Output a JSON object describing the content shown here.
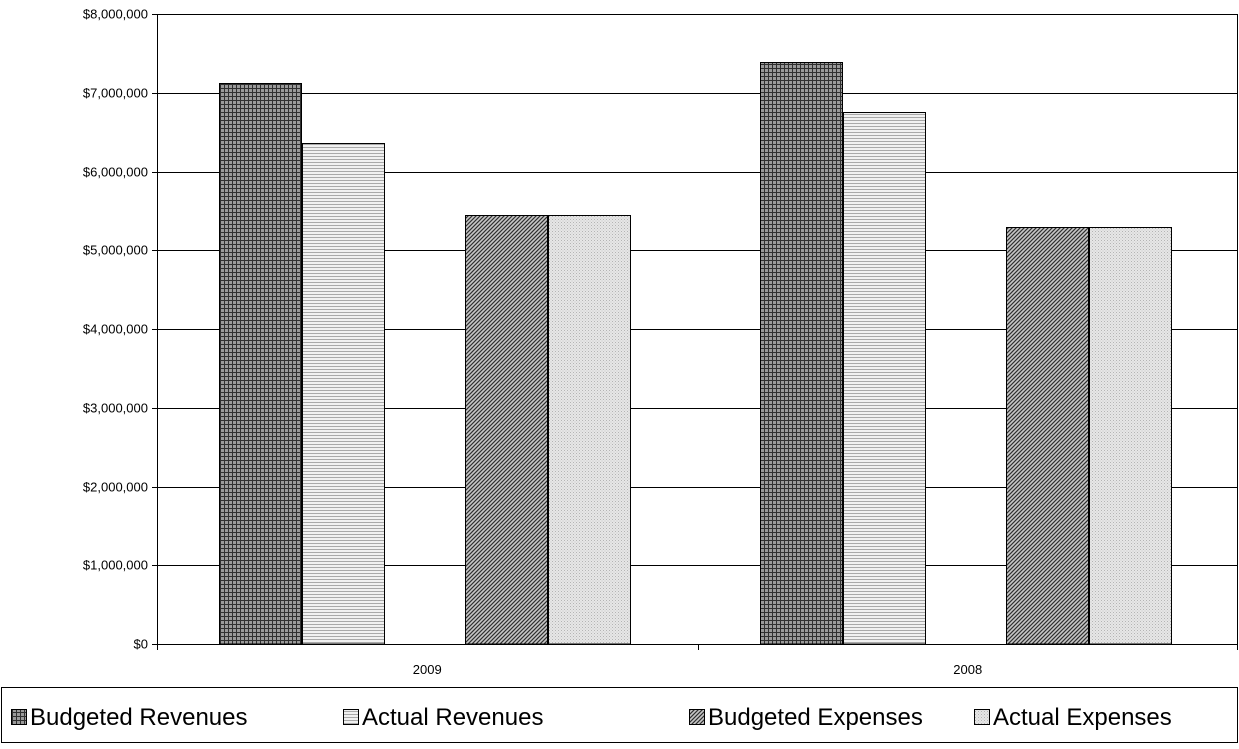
{
  "chart_data": {
    "type": "bar",
    "categories": [
      "2009",
      "2008"
    ],
    "series": [
      {
        "name": "Budgeted Revenues",
        "values": [
          7120000,
          7390000
        ],
        "pattern": "grid-dark",
        "fill": "#808080"
      },
      {
        "name": "Actual Revenues",
        "values": [
          6360000,
          6760000
        ],
        "pattern": "lines-light",
        "fill": "#d0d0d0"
      },
      {
        "name": "Budgeted Expenses",
        "values": [
          5450000,
          5290000
        ],
        "pattern": "diagonal-dark",
        "fill": "#707070"
      },
      {
        "name": "Actual Expenses",
        "values": [
          5450000,
          5290000
        ],
        "pattern": "dots-light",
        "fill": "#d8d8d8"
      }
    ],
    "ylim": [
      0,
      8000000
    ],
    "yticks": [
      "$0",
      "$1,000,000",
      "$2,000,000",
      "$3,000,000",
      "$4,000,000",
      "$5,000,000",
      "$6,000,000",
      "$7,000,000",
      "$8,000,000"
    ],
    "ytick_values": [
      0,
      1000000,
      2000000,
      3000000,
      4000000,
      5000000,
      6000000,
      7000000,
      8000000
    ],
    "grid": true,
    "legend_position": "bottom",
    "title": "",
    "xlabel": "",
    "ylabel": ""
  }
}
